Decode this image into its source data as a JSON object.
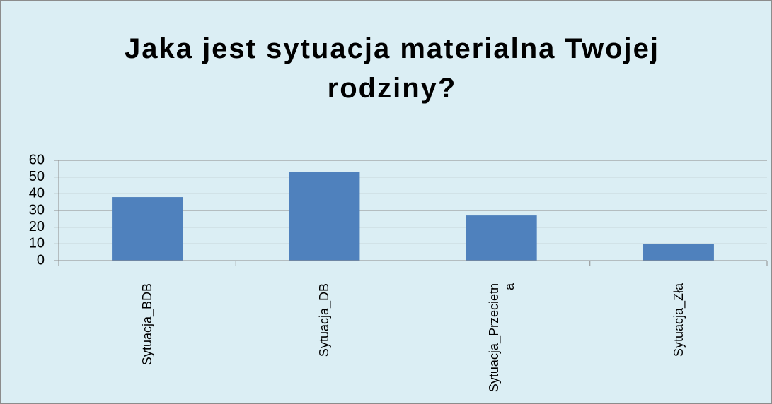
{
  "chart_data": {
    "type": "bar",
    "title": "Jaka jest sytuacja materialna Twojej rodziny?",
    "categories": [
      "Sytuacja_BDB",
      "Sytuacja_DB",
      "Sytuacja_Przecietna",
      "Sytuacja_Zła"
    ],
    "values": [
      38,
      53,
      27,
      10
    ],
    "color": "#4f81bd",
    "ylim": [
      0,
      60
    ],
    "yticks": [
      0,
      10,
      20,
      30,
      40,
      50,
      60
    ],
    "grid": true
  }
}
